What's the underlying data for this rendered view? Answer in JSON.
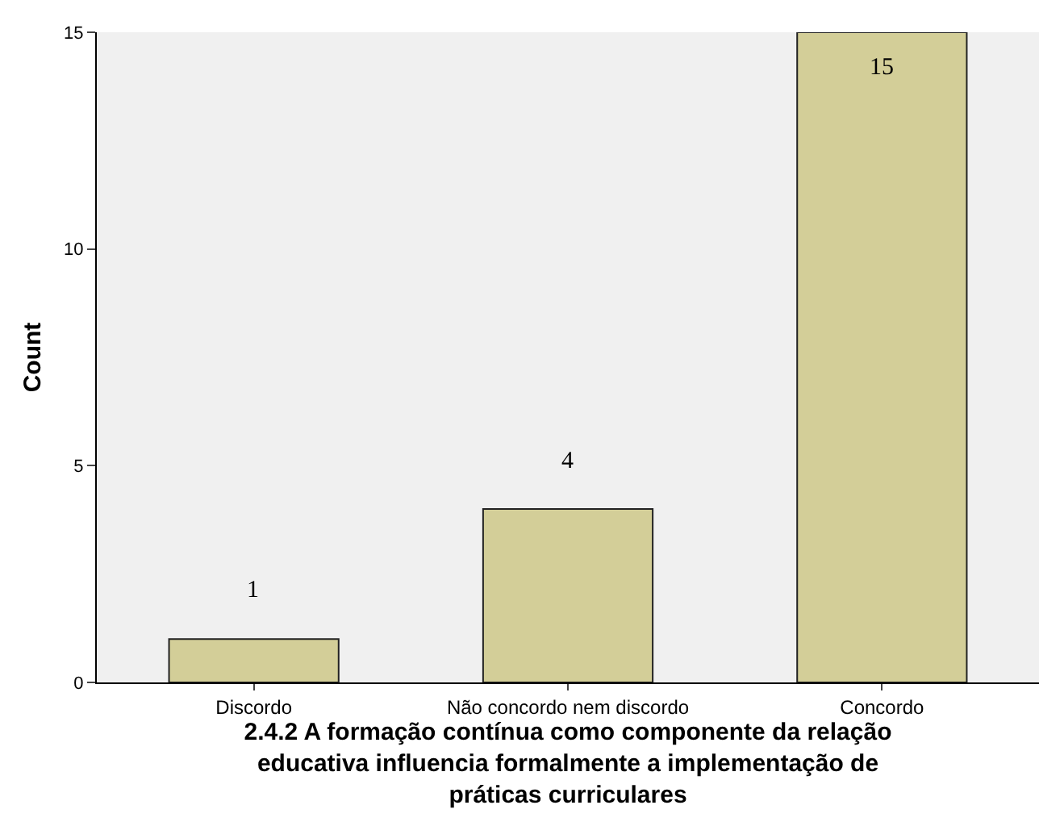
{
  "chart_data": {
    "type": "bar",
    "xlabel": "2.4.2 A formação contínua como componente da relação\neducativa influencia formalmente a implementação de\npráticas curriculares",
    "ylabel": "Count",
    "categories": [
      "Discordo",
      "Não concordo nem discordo",
      "Concordo"
    ],
    "values": [
      1,
      4,
      15
    ],
    "color": "#d3ce98",
    "ylim": [
      0,
      15
    ],
    "yticks": [
      0,
      5,
      10,
      15
    ],
    "grid": false,
    "data_labels": true
  }
}
